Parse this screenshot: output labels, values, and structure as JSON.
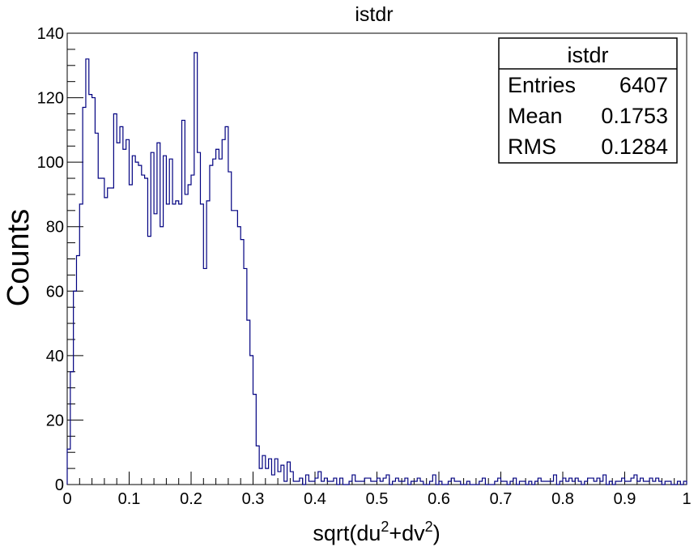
{
  "chart_data": {
    "type": "histogram",
    "title": "istdr",
    "xlabel_base": "sqrt(du",
    "xlabel_sup1": "2",
    "xlabel_mid": "+dv",
    "xlabel_sup2": "2",
    "xlabel_end": ")",
    "ylabel": "Counts",
    "xlim": [
      0,
      1
    ],
    "ylim": [
      0,
      140
    ],
    "xticks": [
      0,
      0.1,
      0.2,
      0.3,
      0.4,
      0.5,
      0.6,
      0.7,
      0.8,
      0.9,
      1
    ],
    "xtick_labels": [
      "0",
      "0.1",
      "0.2",
      "0.3",
      "0.4",
      "0.5",
      "0.6",
      "0.7",
      "0.8",
      "0.9",
      "1"
    ],
    "yticks": [
      0,
      20,
      40,
      60,
      80,
      100,
      120,
      140
    ],
    "ytick_labels": [
      "0",
      "20",
      "40",
      "60",
      "80",
      "100",
      "120",
      "140"
    ],
    "bin_width": 0.005,
    "line_color": "#000080",
    "counts": [
      11,
      35,
      60,
      71,
      87,
      117,
      132,
      121,
      120,
      109,
      95,
      95,
      89,
      92,
      92,
      115,
      106,
      111,
      104,
      107,
      93,
      102,
      100,
      99,
      96,
      95,
      77,
      103,
      84,
      106,
      80,
      102,
      87,
      101,
      87,
      88,
      87,
      113,
      90,
      93,
      96,
      134,
      103,
      87,
      67,
      88,
      99,
      101,
      104,
      101,
      107,
      111,
      97,
      85,
      85,
      80,
      76,
      67,
      51,
      40,
      28,
      12,
      5,
      9,
      5,
      8,
      3,
      8,
      4,
      6,
      1,
      7,
      4,
      1,
      1,
      2,
      0,
      3,
      1,
      1,
      2,
      4,
      1,
      2,
      1,
      1,
      2,
      0,
      2,
      0,
      0,
      1,
      3,
      1,
      1,
      1,
      2,
      2,
      1,
      1,
      2,
      1,
      2,
      3,
      0,
      1,
      2,
      1,
      1,
      2,
      0,
      1,
      1,
      2,
      1,
      0,
      0,
      1,
      3,
      0,
      1,
      0,
      0,
      1,
      2,
      1,
      1,
      0,
      0,
      1,
      0,
      0,
      0,
      1,
      2,
      0,
      0,
      0,
      1,
      2,
      1,
      1,
      0,
      1,
      2,
      0,
      1,
      1,
      0,
      1,
      0,
      1,
      2,
      1,
      1,
      1,
      1,
      3,
      0,
      1,
      2,
      1,
      2,
      1,
      2,
      1,
      0,
      1,
      2,
      2,
      1,
      2,
      1,
      3,
      0,
      1,
      0,
      1,
      1,
      2,
      1,
      1,
      2,
      3,
      1,
      2,
      1,
      1,
      2,
      1,
      2,
      1,
      0,
      1,
      1,
      0,
      0,
      1,
      0,
      1
    ],
    "stats_box": {
      "title": "istdr",
      "rows": [
        {
          "label": "Entries",
          "value": "6407"
        },
        {
          "label": "Mean",
          "value": "0.1753"
        },
        {
          "label": "RMS",
          "value": "0.1284"
        }
      ]
    }
  }
}
